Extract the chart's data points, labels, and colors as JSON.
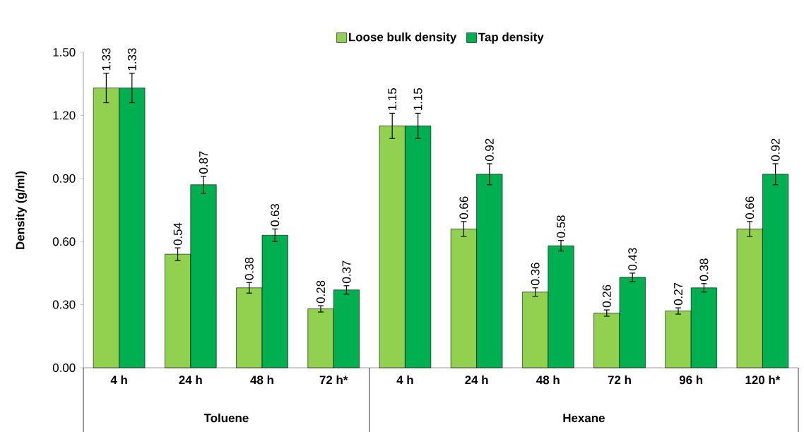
{
  "chart_data": {
    "type": "bar",
    "ylabel": "Density (g/ml)",
    "categories": [
      "4 h",
      "24 h",
      "48 h",
      "72 h*",
      "4 h",
      "24 h",
      "48 h",
      "72 h",
      "96 h",
      "120 h*"
    ],
    "annotations": [
      "Toluene",
      "Hexane"
    ],
    "ylim": [
      0,
      1.5
    ],
    "yticks": [
      {
        "value": 0,
        "label": "0.00"
      },
      {
        "value": 0.3,
        "label": "0.30"
      },
      {
        "value": 0.6,
        "label": "0.60"
      },
      {
        "value": 0.9,
        "label": "0.90"
      },
      {
        "value": 1.2,
        "label": "1.20"
      },
      {
        "value": 1.5,
        "label": "1.50"
      }
    ],
    "legend": "top",
    "grid": false,
    "series": [
      {
        "name": "Loose bulk density",
        "color": "#92d050",
        "values": [
          1.33,
          0.54,
          0.38,
          0.28,
          1.15,
          0.66,
          0.36,
          0.26,
          0.27,
          0.66
        ],
        "errors": [
          0.07,
          0.03,
          0.025,
          0.015,
          0.06,
          0.035,
          0.02,
          0.015,
          0.015,
          0.035
        ],
        "value_labels": [
          "1.33",
          "0.54",
          "0.38",
          "0.28",
          "1.15",
          "0.66",
          "0.36",
          "0.26",
          "0.27",
          "0.66"
        ]
      },
      {
        "name": "Tap density",
        "color": "#00b050",
        "values": [
          1.33,
          0.87,
          0.63,
          0.37,
          1.15,
          0.92,
          0.58,
          0.43,
          0.38,
          0.92
        ],
        "errors": [
          0.07,
          0.04,
          0.03,
          0.02,
          0.06,
          0.05,
          0.025,
          0.02,
          0.02,
          0.05
        ],
        "value_labels": [
          "1.33",
          "0.87",
          "0.63",
          "0.37",
          "1.15",
          "0.92",
          "0.58",
          "0.43",
          "0.38",
          "0.92"
        ]
      }
    ]
  }
}
